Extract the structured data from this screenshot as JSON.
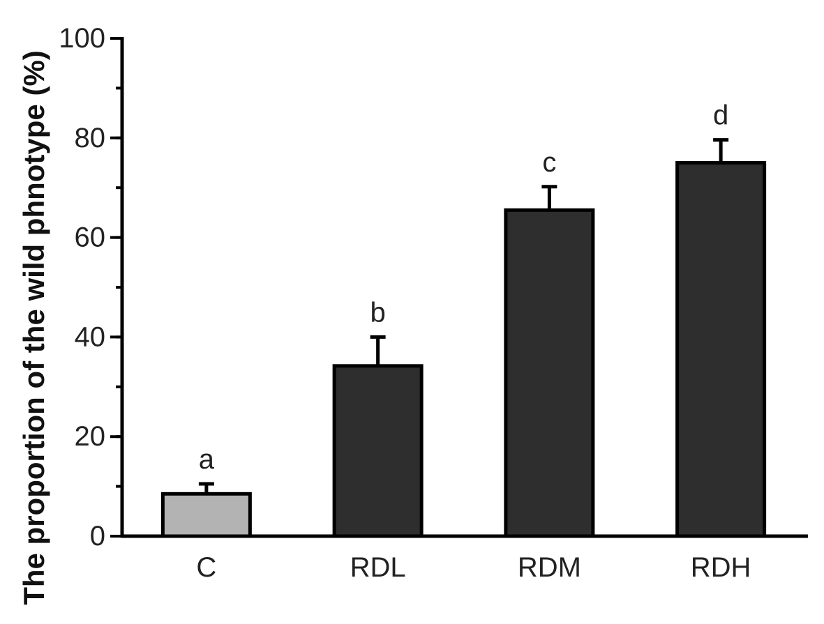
{
  "chart_data": {
    "type": "bar",
    "title": "",
    "xlabel": "",
    "ylabel": "The proportion of the wild phnotype (%)",
    "ylim": [
      0,
      100
    ],
    "yticks": [
      0,
      20,
      40,
      60,
      80,
      100
    ],
    "y_minor_step": 10,
    "grid": false,
    "categories": [
      "C",
      "RDL",
      "RDM",
      "RDH"
    ],
    "values": [
      8.5,
      34.2,
      65.5,
      75.0
    ],
    "errors": [
      2.0,
      5.8,
      4.7,
      4.6
    ],
    "significance_labels": [
      "a",
      "b",
      "c",
      "d"
    ],
    "bar_colors": [
      "#b3b3b3",
      "#2e2e2e",
      "#2e2e2e",
      "#2e2e2e"
    ],
    "edge_color": "#000000"
  }
}
